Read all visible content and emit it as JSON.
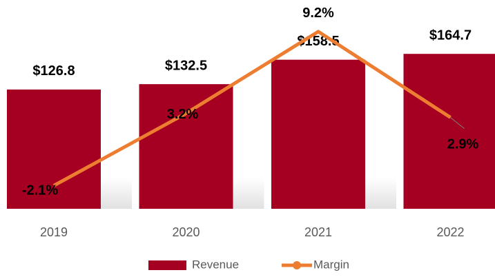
{
  "chart_data": {
    "type": "bar-line",
    "categories": [
      "2019",
      "2020",
      "2021",
      "2022"
    ],
    "series": [
      {
        "name": "Revenue",
        "type": "bar",
        "color": "#a50021",
        "values": [
          126.8,
          132.5,
          158.5,
          164.7
        ],
        "value_labels": [
          "$126.8",
          "$132.5",
          "$158.5",
          "$164.7"
        ]
      },
      {
        "name": "Margin",
        "type": "line",
        "axis": "y2",
        "color": "#ed7d31",
        "values": [
          -2.1,
          3.2,
          9.2,
          2.9
        ],
        "value_labels": [
          "-2.1%",
          "3.2%",
          "9.2%",
          "2.9%"
        ]
      }
    ],
    "ylim": [
      0,
      200
    ],
    "y2lim": [
      -3.8,
      10
    ],
    "legend": "bottom"
  }
}
